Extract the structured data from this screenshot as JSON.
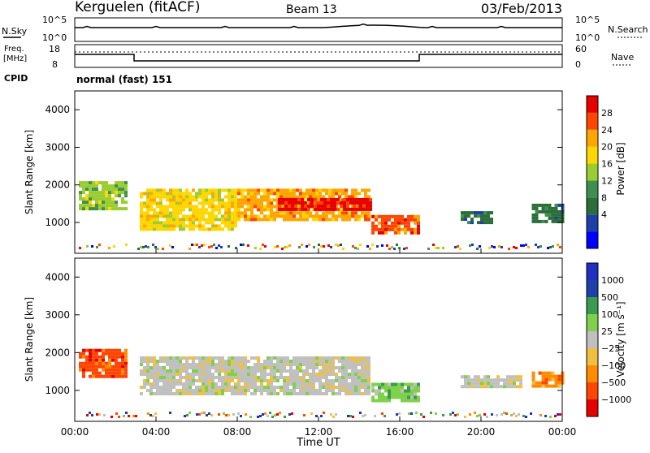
{
  "header": {
    "station": "Kerguelen (fitACF)",
    "beam": "Beam 13",
    "date": "03/Feb/2013"
  },
  "colors": {
    "frame": "#000000",
    "axis_line": "#1a237e"
  },
  "noise_panel": {
    "left_label": "N.Sky",
    "right_label": "N.Search",
    "left_ticks": [
      "10^5",
      "10^0"
    ],
    "right_ticks": [
      "10^5",
      "10^0"
    ]
  },
  "freq_panel": {
    "left_label": "Freq.",
    "left_unit": "[MHz]",
    "right_label": "Nave",
    "left_ticks": [
      "18",
      "8"
    ],
    "right_ticks": [
      "60",
      "0"
    ],
    "cpid_label": "CPID",
    "cpid_value": "normal (fast) 151"
  },
  "x_axis": {
    "title": "Time UT",
    "ticks": [
      "00:00",
      "04:00",
      "08:00",
      "12:00",
      "16:00",
      "20:00",
      "00:00"
    ]
  },
  "chart_data": [
    {
      "type": "heatmap",
      "panel": "power",
      "ylabel": "Slant Range [km]",
      "ylim": [
        180,
        4500
      ],
      "yticks": [
        "4000",
        "3000",
        "2000",
        "1000"
      ],
      "xlim_hours": [
        0,
        24
      ],
      "colorbar": {
        "label": "Power [dB]",
        "ticks": [
          "28",
          "24",
          "20",
          "16",
          "12",
          "8",
          "4"
        ],
        "colors": [
          "#0000ff",
          "#1f3fa8",
          "#2c6e3a",
          "#3f9050",
          "#9acd32",
          "#ffd700",
          "#ffa500",
          "#ff4500",
          "#e60000"
        ]
      },
      "bands": [
        {
          "t0": 0.2,
          "t1": 2.5,
          "r0": 1400,
          "r1": 2100,
          "level": 0.55
        },
        {
          "t0": 3.2,
          "t1": 8.0,
          "r0": 800,
          "r1": 1900,
          "level": 0.6
        },
        {
          "t0": 8.0,
          "t1": 14.5,
          "r0": 1100,
          "r1": 1900,
          "level": 0.75
        },
        {
          "t0": 10.0,
          "t1": 14.5,
          "r0": 1350,
          "r1": 1650,
          "level": 0.95
        },
        {
          "t0": 14.6,
          "t1": 16.9,
          "r0": 700,
          "r1": 1200,
          "level": 0.9
        },
        {
          "t0": 19.0,
          "t1": 20.5,
          "r0": 1000,
          "r1": 1300,
          "level": 0.3
        },
        {
          "t0": 22.5,
          "t1": 24.0,
          "r0": 1000,
          "r1": 1500,
          "level": 0.3
        }
      ]
    },
    {
      "type": "heatmap",
      "panel": "velocity",
      "ylabel": "Slant Range [km]",
      "ylim": [
        180,
        4500
      ],
      "yticks": [
        "4000",
        "3000",
        "2000",
        "1000"
      ],
      "xlim_hours": [
        0,
        24
      ],
      "colorbar": {
        "label": "Velocity [m s⁻¹]",
        "ticks": [
          "1000",
          "500",
          "100",
          "25",
          "−25",
          "−100",
          "−500",
          "−1000"
        ],
        "colors": [
          "#e60000",
          "#ff4500",
          "#ff8c00",
          "#f0c040",
          "#c0c0c0",
          "#7fd04a",
          "#3a9a50",
          "#1f3fa8",
          "#2030c0"
        ]
      },
      "bands": [
        {
          "t0": 0.2,
          "t1": 2.5,
          "r0": 1400,
          "r1": 2100,
          "value": -500
        },
        {
          "t0": 3.2,
          "t1": 14.5,
          "r0": 900,
          "r1": 1900,
          "value": 0
        },
        {
          "t0": 14.6,
          "t1": 16.9,
          "r0": 700,
          "r1": 1200,
          "value": 100
        },
        {
          "t0": 19.0,
          "t1": 22.0,
          "r0": 1100,
          "r1": 1400,
          "value": 0
        },
        {
          "t0": 22.5,
          "t1": 24.0,
          "r0": 1100,
          "r1": 1500,
          "value": -100
        }
      ]
    }
  ]
}
